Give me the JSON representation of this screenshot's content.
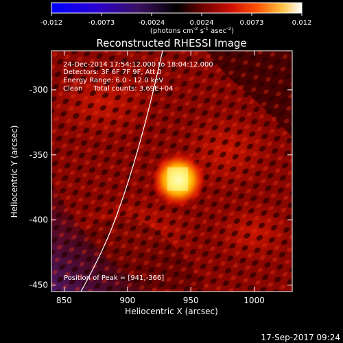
{
  "colorbar": {
    "ticks": [
      "-0.012",
      "-0.0073",
      "-0.0024",
      "0.0024",
      "0.0073",
      "0.012"
    ],
    "units_main": "(photons cm",
    "units_exp1": "-2",
    "units_mid": " s",
    "units_exp2": "-1",
    "units_end": " asec",
    "units_exp3": "-2",
    "units_close": ")"
  },
  "title": "Reconstructed RHESSI Image",
  "info": {
    "line1": "24-Dec-2014 17:54:12.000 to 18:04:12.000",
    "line2": "Detectors: 3F 6F 7F 9F, Att 0",
    "line3": "Energy Range: 6.0 - 12.0 keV",
    "line4": "Clean     Total counts: 3.69E+04"
  },
  "peak_label": "Position of Peak = [941,-366]",
  "axes": {
    "xlabel": "Heliocentric X (arcsec)",
    "ylabel": "Heliocentric Y (arcsec)",
    "xticks": [
      "850",
      "900",
      "950",
      "1000"
    ],
    "yticks": [
      "-300",
      "-350",
      "-400",
      "-450"
    ]
  },
  "timestamp": "17-Sep-2017 09:24",
  "peak": {
    "x": 941,
    "y": -366
  },
  "colors": {
    "background": "#000000",
    "limb": "#ffffff",
    "text": "#ffffff"
  }
}
